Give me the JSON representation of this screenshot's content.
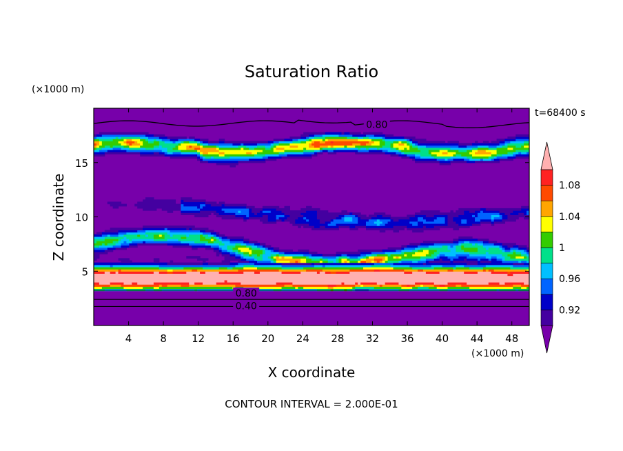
{
  "chart_data": {
    "type": "heatmap",
    "title": "Saturation Ratio",
    "time_label": "t=68400 s",
    "xlabel": "X coordinate",
    "ylabel": "Z coordinate",
    "x_unit": "(×1000 m)",
    "y_unit": "(×1000 m)",
    "xlim": [
      0,
      50
    ],
    "ylim": [
      0,
      20
    ],
    "x_ticks": [
      4,
      8,
      12,
      16,
      20,
      24,
      28,
      32,
      36,
      40,
      44,
      48
    ],
    "x_tick_labels": [
      "4",
      "8",
      "12",
      "16",
      "20",
      "24",
      "28",
      "32",
      "36",
      "40",
      "44",
      "48"
    ],
    "y_ticks": [
      5,
      10,
      15
    ],
    "y_tick_labels": [
      "5",
      "10",
      "15"
    ],
    "footer": "CONTOUR INTERVAL = 2.000E-01",
    "contour_labels": [
      {
        "text": "0.80",
        "x": 32.5,
        "z": 18.5
      },
      {
        "text": "0.80",
        "x": 17.5,
        "z": 3.0
      },
      {
        "text": "0.40",
        "x": 17.5,
        "z": 1.8
      }
    ],
    "colorbar": {
      "tick_values": [
        0.92,
        0.96,
        1,
        1.04,
        1.08
      ],
      "tick_labels": [
        "0.92",
        "0.96",
        "1",
        "1.04",
        "1.08"
      ],
      "levels": [
        0.9,
        0.92,
        0.94,
        0.96,
        0.98,
        1.0,
        1.02,
        1.04,
        1.06,
        1.08,
        1.1
      ],
      "colors": [
        "#7700aa",
        "#4400a0",
        "#0000c8",
        "#0064ff",
        "#00bfff",
        "#00e08a",
        "#33cc00",
        "#ffff00",
        "#ffa500",
        "#ff4a00",
        "#ff2222",
        "#ffb0b0"
      ],
      "extend": "both"
    },
    "bands": [
      {
        "z_range": [
          0,
          3.3
        ],
        "value": 0.4,
        "description_type": "uniform"
      },
      {
        "z_range": [
          3.3,
          5.8
        ],
        "value": 1.07
      },
      {
        "z_range": [
          5.8,
          8.5
        ],
        "value": 0.96
      },
      {
        "z_range": [
          8.5,
          16
        ],
        "value": 0.92
      },
      {
        "z_range": [
          16,
          17.5
        ],
        "value": 1.0
      },
      {
        "z_range": [
          17.5,
          20
        ],
        "value": 0.88
      }
    ]
  }
}
